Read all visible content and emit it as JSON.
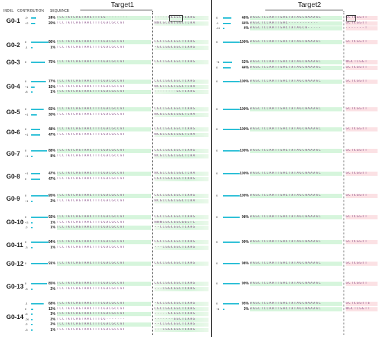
{
  "headers": {
    "indel": "INDEL",
    "contribution": "CONTRIBUTION",
    "sequence": "SEQUENCE",
    "target1": "Target1",
    "target2": "Target2"
  },
  "left_groups": [
    {
      "label": "G0-1",
      "rows": [
        {
          "indel": "-9",
          "pct": "24%",
          "bar": 0.26,
          "s1": "TCCTATCAGTAACTTTCG--------",
          "s2": "-----[GG]GGCTCAAG"
        },
        {
          "indel": "+2",
          "pct": "20%",
          "bar": 0.22,
          "s1": "TCCTATCAGTAACTTTCGACGCCAT",
          "s2": "NNCGCGGCGGCTCAA"
        }
      ]
    },
    {
      "label": "G0-2",
      "rows": [
        {
          "indel": "0",
          "pct": "96%",
          "bar": 0.97,
          "s1": "TCCTATCAGTAACTTTCGACGCCAT",
          "s2": "CGCCGGCGGCTCAAG"
        },
        {
          "indel": "-1",
          "pct": "1%",
          "bar": 0.02,
          "s1": "TCCTATCAGTAACTTTCGACGCCAT",
          "s2": "-GCCGGCGGCTCAAG"
        }
      ]
    },
    {
      "label": "G0-3",
      "rows": [
        {
          "indel": "0",
          "pct": "75%",
          "bar": 0.78,
          "s1": "TCCTATCAGTAACTTTCGACGCCAT",
          "s2": "CGCCGGCGGCTCAAG"
        }
      ]
    },
    {
      "label": "G0-4",
      "rows": [
        {
          "indel": "0",
          "pct": "77%",
          "bar": 0.8,
          "s1": "TCCTATCAGTAACTTTCGACGCCAT",
          "s2": "CGCCGGCGGCTCAAG"
        },
        {
          "indel": "+1",
          "pct": "16%",
          "bar": 0.18,
          "s1": "TCCTATCAGTAACTTTCGACGCCAT",
          "s2": "NCGCCGGCGGCTCAA"
        },
        {
          "indel": "-8",
          "pct": "1%",
          "bar": 0.02,
          "s1": "TCCTATCAGTAACTTTCGACGCCAT",
          "s2": "--------GCTCAAG"
        }
      ]
    },
    {
      "label": "G0-5",
      "rows": [
        {
          "indel": "0",
          "pct": "65%",
          "bar": 0.68,
          "s1": "TCCTATCAGTAACTTTCGACGCCAT",
          "s2": "CGCCGGCGGCTCAAG"
        },
        {
          "indel": "+1",
          "pct": "30%",
          "bar": 0.32,
          "s1": "TCCTATCAGTAACTTTCGACGCCAT",
          "s2": "NCGCCGGCGGCTCAA"
        }
      ]
    },
    {
      "label": "G0-6",
      "rows": [
        {
          "indel": "0",
          "pct": "48%",
          "bar": 0.5,
          "s1": "TCCTATCAGTAACTTTCGACGCCAT",
          "s2": "CGCCGGCGGCTCAAG"
        },
        {
          "indel": "+1",
          "pct": "47%",
          "bar": 0.49,
          "s1": "TCCTATCAGTAACTTTCGACGCCAT",
          "s2": "NCGCCGGCGGCTCAA"
        }
      ]
    },
    {
      "label": "G0-7",
      "rows": [
        {
          "indel": "0",
          "pct": "88%",
          "bar": 0.9,
          "s1": "TCCTATCAGTAACTTTCGACGCCAT",
          "s2": "CGCCGGCGGCTCAAG"
        },
        {
          "indel": "+1",
          "pct": "8%",
          "bar": 0.09,
          "s1": "TCCTATCAGTAACTTTCGACGCCAT",
          "s2": "NCGCCGGCGGCTCAA"
        }
      ]
    },
    {
      "label": "G0-8",
      "rows": [
        {
          "indel": "+1",
          "pct": "47%",
          "bar": 0.49,
          "s1": "TCCTATCAGTAACTTTCGACGCCAT",
          "s2": "NCGCCGGCGGCTCAA"
        },
        {
          "indel": "0",
          "pct": "47%",
          "bar": 0.49,
          "s1": "TCCTATCAGTAACTTTCGACGCCAT",
          "s2": "CGCCGGCGGCTCAAG"
        }
      ]
    },
    {
      "label": "G0-9",
      "rows": [
        {
          "indel": "0",
          "pct": "95%",
          "bar": 0.97,
          "s1": "TCCTATCAGTAACTTTCGACGCCAT",
          "s2": "CGCCGGCGGCTCAAG"
        },
        {
          "indel": "+1",
          "pct": "2%",
          "bar": 0.03,
          "s1": "TCCTATCAGTAACTTTCGACGCCAT",
          "s2": "NCGCCGGCGGCTCAA"
        }
      ]
    },
    {
      "label": "G0-10",
      "rows": [
        {
          "indel": "0",
          "pct": "92%",
          "bar": 0.94,
          "s1": "TCCTATCAGTAACTTTCGACGCCAT",
          "s2": "CGCCGGCGGCTCAAG"
        },
        {
          "indel": "+3",
          "pct": "1%",
          "bar": 0.02,
          "s1": "TCCTATCAGTAACTTTCGACGCCAT",
          "s2": "NNNCGCCGGCGGCTC"
        },
        {
          "indel": "-2",
          "pct": "1%",
          "bar": 0.02,
          "s1": "TCCTATCAGTAACTTTCGACGCCAT",
          "s2": "--CCGGCGGCTCAAG"
        }
      ]
    },
    {
      "label": "G0-11",
      "rows": [
        {
          "indel": "0",
          "pct": "94%",
          "bar": 0.96,
          "s1": "TCCTATCAGTAACTTTCGACGCCAT",
          "s2": "CGCCGGCGGCTCAAG"
        },
        {
          "indel": "-3",
          "pct": "1%",
          "bar": 0.02,
          "s1": "TCCTATCAGTAACTTTCGACGCCAT",
          "s2": "---CGGCGGCTCAAG"
        }
      ]
    },
    {
      "label": "G0-12",
      "rows": [
        {
          "indel": "0",
          "pct": "91%",
          "bar": 0.93,
          "s1": "TCCTATCAGTAACTTTCGACGCCAT",
          "s2": "CGCCGGCGGCTCAAG"
        }
      ]
    },
    {
      "label": "G0-13",
      "rows": [
        {
          "indel": "0",
          "pct": "85%",
          "bar": 0.87,
          "s1": "TCCTATCAGTAACTTTCGACGCCAT",
          "s2": "CGCCGGCGGCTCAAG"
        },
        {
          "indel": "-3",
          "pct": "2%",
          "bar": 0.03,
          "s1": "TCCTATCAGTAACTTTCGACGCCAT",
          "s2": "---CGGCGGCTCAAG"
        }
      ]
    },
    {
      "label": "G0-14",
      "rows": [
        {
          "indel": "-1",
          "pct": "68%",
          "bar": 0.7,
          "s1": "TCCTATCAGTAACTTTCGACGCCAT",
          "s2": "-GCCGGCGGCTCAAG"
        },
        {
          "indel": "0",
          "pct": "12%",
          "bar": 0.13,
          "s1": "TCCTATCAGTAACTTTCGACGCCAT",
          "s2": "CGCCGGCGGCTCAAG"
        },
        {
          "indel": "-5",
          "pct": "3%",
          "bar": 0.04,
          "s1": "TCCTATCAGTAACTTTCGACGCCAT",
          "s2": "-----GCGGCTCAAG"
        },
        {
          "indel": "-20",
          "pct": "2%",
          "bar": 0.03,
          "s1": "TCCTATCAGTAACTTTCG-------",
          "s2": "-------GGCTCAAG"
        },
        {
          "indel": "-2",
          "pct": "2%",
          "bar": 0.03,
          "s1": "TCCTATCAGTAACTTTCGACGCCAT",
          "s2": "--CCGGCGGCTCAAG"
        },
        {
          "indel": "-3",
          "pct": "1%",
          "bar": 0.02,
          "s1": "TCCTATCAGTAACTTTCGACGCCAT",
          "s2": "---CGGCGGCTCAAG"
        }
      ]
    }
  ],
  "right_groups": [
    {
      "rows": [
        {
          "indel": "0",
          "pct": "46%",
          "bar": 0.48,
          "s1": "AAGCTCCAATTGACTATAGCAAAAAC",
          "s2": "[GC]TCGGTT"
        },
        {
          "indel": "-1",
          "pct": "44%",
          "bar": 0.46,
          "s1": "AAGCTCCAATTGAC-----------",
          "s2": "GCTCGGTT"
        },
        {
          "indel": "-11",
          "pct": "4%",
          "bar": 0.05,
          "s1": "AAGCTCCAATTGACTATAGCA-----",
          "s2": "-------T"
        }
      ]
    },
    {
      "rows": [
        {
          "indel": "0",
          "pct": "100%",
          "bar": 1.0,
          "s1": "AAGCTCCAATTGACTATAGCAAAAAC",
          "s2": "GCTCGGTT"
        }
      ]
    },
    {
      "rows": [
        {
          "indel": "+1",
          "pct": "52%",
          "bar": 0.54,
          "s1": "AAGCTCCAATTGACTATAGCAAAAAC",
          "s2": "NGCTCGGT"
        },
        {
          "indel": "0",
          "pct": "44%",
          "bar": 0.46,
          "s1": "AAGCTCCAATTGACTATAGCAAAAAC",
          "s2": "GCTCGGTT"
        }
      ]
    },
    {
      "rows": [
        {
          "indel": "0",
          "pct": "100%",
          "bar": 1.0,
          "s1": "AAGCTCCAATTGACTATAGCAAAAAC",
          "s2": "GCTCGGTT"
        }
      ]
    },
    {
      "rows": [
        {
          "indel": "0",
          "pct": "100%",
          "bar": 1.0,
          "s1": "AAGCTCCAATTGACTATAGCAAAAAC",
          "s2": "GCTCGGTT"
        }
      ]
    },
    {
      "rows": [
        {
          "indel": "0",
          "pct": "100%",
          "bar": 1.0,
          "s1": "AAGCTCCAATTGACTATAGCAAAAAC",
          "s2": "GCTCGGTT"
        }
      ]
    },
    {
      "rows": [
        {
          "indel": "0",
          "pct": "100%",
          "bar": 1.0,
          "s1": "AAGCTCCAATTGACTATAGCAAAAAC",
          "s2": "GCTCGGTT"
        }
      ]
    },
    {
      "rows": [
        {
          "indel": "0",
          "pct": "100%",
          "bar": 1.0,
          "s1": "AAGCTCCAATTGACTATAGCAAAAAC",
          "s2": "GCTCGGTT"
        }
      ]
    },
    {
      "rows": [
        {
          "indel": "0",
          "pct": "100%",
          "bar": 1.0,
          "s1": "AAGCTCCAATTGACTATAGCAAAAAC",
          "s2": "GCTCGGTT"
        }
      ]
    },
    {
      "rows": [
        {
          "indel": "0",
          "pct": "98%",
          "bar": 0.98,
          "s1": "AAGCTCCAATTGACTATAGCAAAAAC",
          "s2": "GCTCGGTT"
        }
      ]
    },
    {
      "rows": [
        {
          "indel": "0",
          "pct": "99%",
          "bar": 0.99,
          "s1": "AAGCTCCAATTGACTATAGCAAAAAC",
          "s2": "GCTCGGTT"
        }
      ]
    },
    {
      "rows": [
        {
          "indel": "0",
          "pct": "98%",
          "bar": 0.98,
          "s1": "AAGCTCCAATTGACTATAGCAAAAAC",
          "s2": "GCTCGGTT"
        }
      ]
    },
    {
      "rows": [
        {
          "indel": "0",
          "pct": "99%",
          "bar": 0.99,
          "s1": "AAGCTCCAATTGACTATAGCAAAAAC",
          "s2": "GCTCGGTT"
        }
      ]
    },
    {
      "rows": [
        {
          "indel": "0",
          "pct": "95%",
          "bar": 0.96,
          "s1": "AAGCTCCAATTGACTATAGCAAAAAC",
          "s2": "GCTCGGTTG"
        },
        {
          "indel": "+1",
          "pct": "3%",
          "bar": 0.04,
          "s1": "AAGCTCCAATTGACTATAGCAAAAAC",
          "s2": "NGCTCGGTT"
        }
      ]
    }
  ],
  "colors": {
    "bar": "#2bbfd6",
    "highlight_green": "#d6f5dc",
    "highlight_pink": "#fbe1e4"
  }
}
